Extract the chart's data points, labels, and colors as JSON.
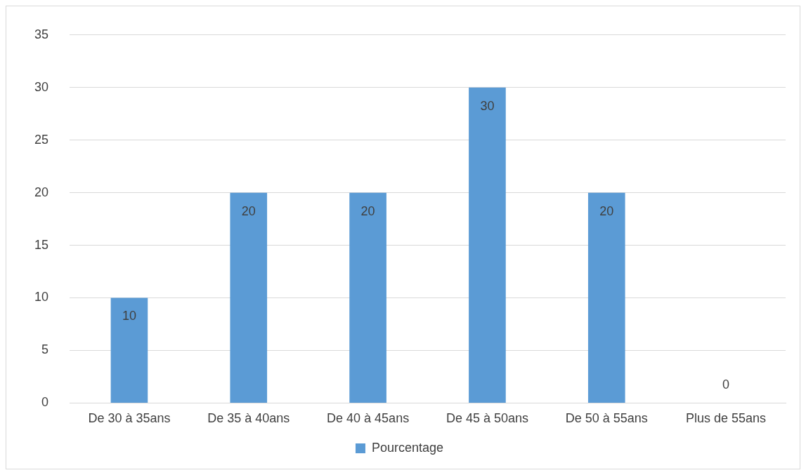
{
  "chart_data": {
    "type": "bar",
    "categories": [
      "De 30 à 35ans",
      "De 35 à 40ans",
      "De 40 à 45ans",
      "De 45 à 50ans",
      "De 50 à 55ans",
      "Plus de 55ans"
    ],
    "series": [
      {
        "name": "Pourcentage",
        "color": "#5b9bd5",
        "values": [
          10,
          20,
          20,
          30,
          20,
          0
        ]
      }
    ],
    "ylim": [
      0,
      35
    ],
    "yticks": [
      0,
      5,
      10,
      15,
      20,
      25,
      30,
      35
    ],
    "grid": "y",
    "legend": "bottom",
    "data_labels": true
  }
}
